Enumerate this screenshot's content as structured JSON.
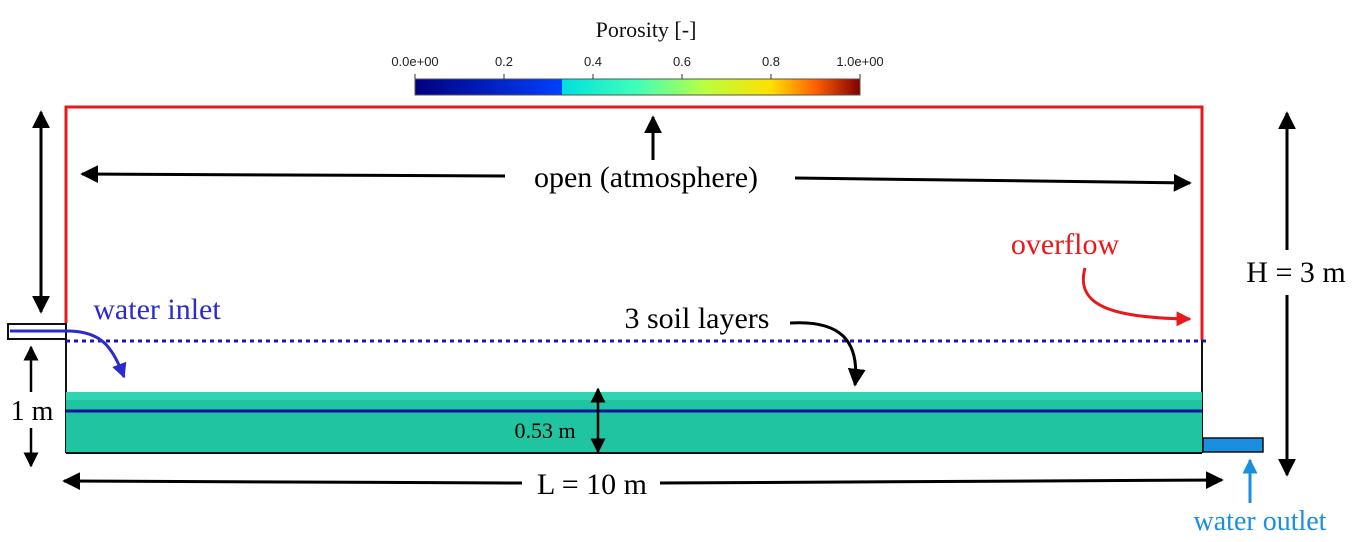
{
  "colorbar": {
    "title": "Porosity [-]",
    "ticks": [
      "0.0e+00",
      "0.2",
      "0.4",
      "0.6",
      "0.8",
      "1.0e+00"
    ],
    "tick_values": [
      0,
      0.2,
      0.4,
      0.6,
      0.8,
      1.0
    ],
    "range": [
      0,
      1
    ],
    "colormap": "jet"
  },
  "labels": {
    "open": "open (atmosphere)",
    "overflow": "overflow",
    "water_inlet": "water inlet",
    "soil_layers": "3 soil layers",
    "height": "H = 3 m",
    "inlet_height": "1 m",
    "layer_thickness": "0.53 m",
    "length": "L = 10 m",
    "water_outlet": "water outlet"
  },
  "colors": {
    "open_boundary": "#e8191c",
    "inlet": "#2a2ad0",
    "outlet": "#1a8fe0",
    "soil": "#20c4a0",
    "soil_top": "#2fd4b0",
    "layer_line": "#1010a0",
    "water_level": "#1a1aa8"
  }
}
